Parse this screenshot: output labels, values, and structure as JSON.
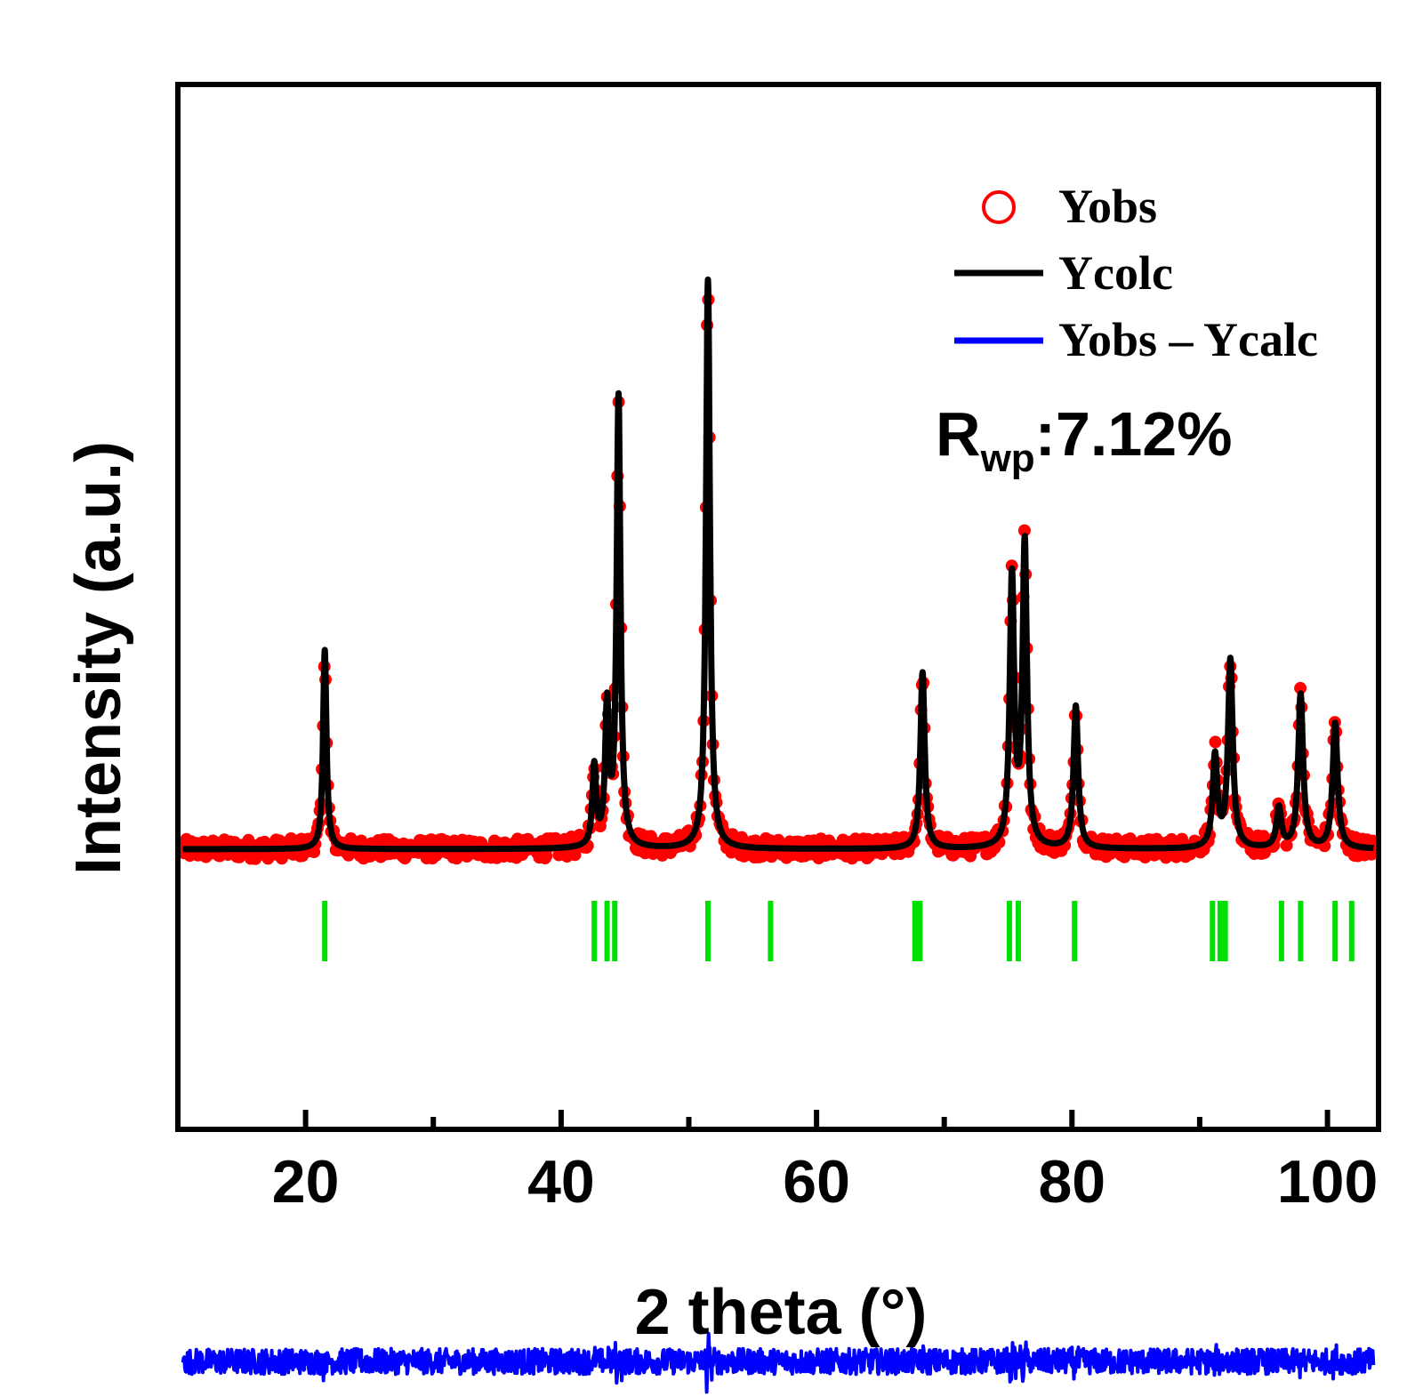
{
  "chart_data": {
    "type": "line",
    "xlabel": "2 theta (°)",
    "ylabel": "Intensity (a.u.)",
    "xlim": [
      10,
      104
    ],
    "xticks": [
      20,
      40,
      60,
      80,
      100
    ],
    "grid": false,
    "legend": {
      "position": "top-right",
      "entries": [
        {
          "label": "Yobs",
          "marker": "circle",
          "color": "#ff0000"
        },
        {
          "label": "Ycolc",
          "marker": "line",
          "color": "#000000"
        },
        {
          "label": "Yobs – Ycalc",
          "marker": "line",
          "color": "#0000ff"
        }
      ]
    },
    "annotation": {
      "main": "R",
      "sub": "wp",
      "rest": ":7.12%"
    },
    "colors": {
      "observed": "#ff0000",
      "calculated": "#000000",
      "difference": "#0000ff",
      "bragg": "#00e000"
    },
    "series": [
      {
        "name": "Yobs",
        "kind": "scatter",
        "baseline": 0,
        "peaks": [
          {
            "x": 21.5,
            "height": 0.35
          },
          {
            "x": 42.6,
            "height": 0.14
          },
          {
            "x": 43.6,
            "height": 0.24
          },
          {
            "x": 44.5,
            "height": 0.79
          },
          {
            "x": 51.5,
            "height": 1.0
          },
          {
            "x": 68.3,
            "height": 0.31
          },
          {
            "x": 75.3,
            "height": 0.47
          },
          {
            "x": 76.3,
            "height": 0.53
          },
          {
            "x": 80.3,
            "height": 0.25
          },
          {
            "x": 91.2,
            "height": 0.16
          },
          {
            "x": 92.4,
            "height": 0.33
          },
          {
            "x": 96.2,
            "height": 0.07
          },
          {
            "x": 97.9,
            "height": 0.27
          },
          {
            "x": 100.6,
            "height": 0.22
          }
        ]
      },
      {
        "name": "Ycolc",
        "kind": "line"
      },
      {
        "name": "Yobs – Ycalc",
        "kind": "line",
        "offset": -0.9
      }
    ],
    "bragg_positions": [
      21.5,
      42.6,
      43.6,
      44.2,
      51.5,
      56.4,
      67.7,
      68.1,
      75.1,
      75.8,
      80.2,
      91.0,
      91.6,
      92.0,
      96.4,
      97.9,
      100.6,
      101.9
    ]
  }
}
